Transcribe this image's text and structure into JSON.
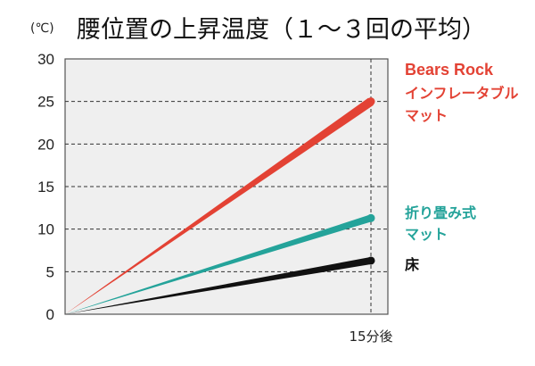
{
  "chart_data": {
    "type": "line",
    "title": "腰位置の上昇温度（１～３回の平均）",
    "unit_label": "(℃)",
    "categories": [
      "",
      "15分後"
    ],
    "x": [
      0,
      15
    ],
    "ylim": [
      0,
      30
    ],
    "yticks": [
      "0",
      "5",
      "10",
      "15",
      "20",
      "25",
      "30"
    ],
    "grid": true,
    "legend_position": "right",
    "series": [
      {
        "name_line1": "Bears Rock",
        "name_line2": "インフレータブル",
        "name_line3": "マット",
        "color": "#e34234",
        "values": [
          0,
          25
        ]
      },
      {
        "name_line1": "折り畳み式",
        "name_line2": "マット",
        "color": "#24a39a",
        "values": [
          0,
          11.3
        ]
      },
      {
        "name_line1": "床",
        "color": "#111111",
        "values": [
          0,
          6.3
        ]
      }
    ]
  }
}
